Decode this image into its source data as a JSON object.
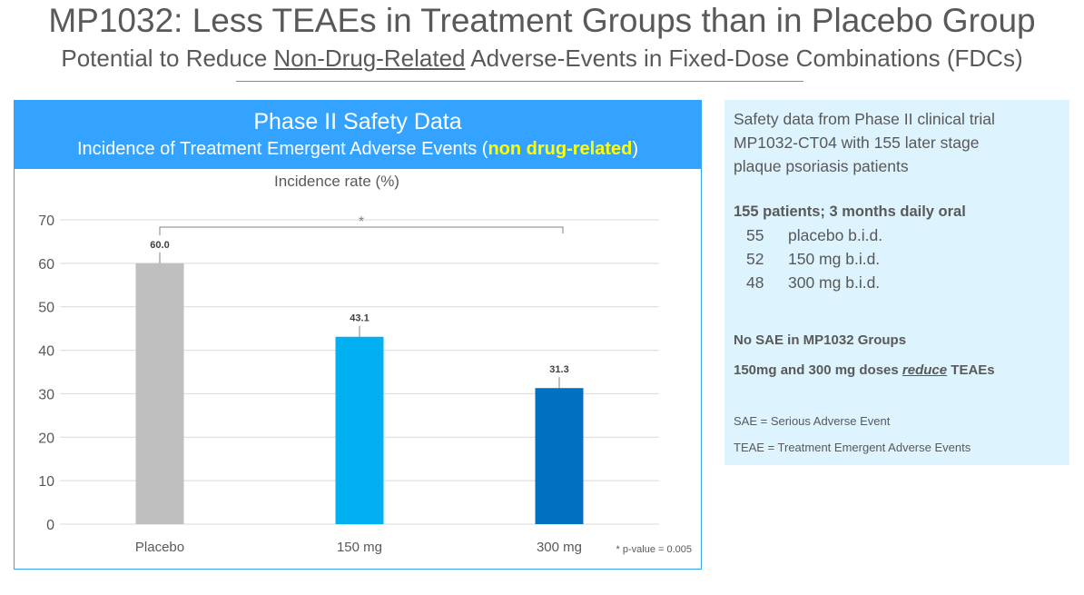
{
  "slide": {
    "title": "MP1032: Less TEAEs in Treatment Groups than in Placebo Group",
    "subtitle_before": "Potential to Reduce ",
    "subtitle_underlined": "Non-Drug-Related",
    "subtitle_after": " Adverse-Events in Fixed-Dose Combinations (FDCs)",
    "accent_color": "#33a3ff"
  },
  "chart_header": {
    "title": "Phase II Safety Data",
    "subtitle_before": "Incidence of Treatment Emergent Adverse Events (",
    "subtitle_highlight": "non drug-related",
    "subtitle_after": ")"
  },
  "chart_data": {
    "type": "bar",
    "title": "Incidence rate (%)",
    "categories": [
      "Placebo",
      "150 mg",
      "300 mg"
    ],
    "values": [
      60.0,
      43.1,
      31.3
    ],
    "value_labels": [
      "60.0",
      "43.1",
      "31.3"
    ],
    "colors": [
      "#bfbfbf",
      "#00b0f0",
      "#0070c0"
    ],
    "ylim": [
      0,
      70
    ],
    "yticks": [
      "0",
      "10",
      "20",
      "30",
      "40",
      "50",
      "60",
      "70"
    ],
    "grid": true,
    "significance": {
      "from": "Placebo",
      "to": "300 mg",
      "marker": "*"
    },
    "footnote": "* p-value = 0.005"
  },
  "side_panel": {
    "intro": [
      "Safety data from Phase II clinical trial",
      "MP1032-CT04 with 155 later stage",
      "plaque psoriasis patients"
    ],
    "design": "155 patients; 3 months daily oral",
    "groups": [
      {
        "n": "55",
        "label": "placebo b.i.d."
      },
      {
        "n": "52",
        "label": "150 mg b.i.d."
      },
      {
        "n": "48",
        "label": "300 mg b.i.d."
      }
    ],
    "finding1": "No SAE in MP1032 Groups",
    "finding2_before": "150mg and 300 mg doses ",
    "finding2_em": "reduce",
    "finding2_after": " TEAEs",
    "abbr1": "SAE = Serious Adverse Event",
    "abbr2": "TEAE = Treatment Emergent Adverse Events"
  }
}
